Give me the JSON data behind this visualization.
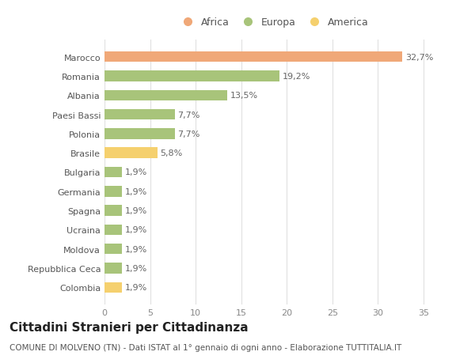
{
  "categories": [
    "Colombia",
    "Repubblica Ceca",
    "Moldova",
    "Ucraina",
    "Spagna",
    "Germania",
    "Bulgaria",
    "Brasile",
    "Polonia",
    "Paesi Bassi",
    "Albania",
    "Romania",
    "Marocco"
  ],
  "values": [
    1.9,
    1.9,
    1.9,
    1.9,
    1.9,
    1.9,
    1.9,
    5.8,
    7.7,
    7.7,
    13.5,
    19.2,
    32.7
  ],
  "colors": [
    "#f5d06e",
    "#a8c47a",
    "#a8c47a",
    "#a8c47a",
    "#a8c47a",
    "#a8c47a",
    "#a8c47a",
    "#f5d06e",
    "#a8c47a",
    "#a8c47a",
    "#a8c47a",
    "#a8c47a",
    "#f0a878"
  ],
  "labels": [
    "1,9%",
    "1,9%",
    "1,9%",
    "1,9%",
    "1,9%",
    "1,9%",
    "1,9%",
    "5,8%",
    "7,7%",
    "7,7%",
    "13,5%",
    "19,2%",
    "32,7%"
  ],
  "legend": [
    {
      "label": "Africa",
      "color": "#f0a878"
    },
    {
      "label": "Europa",
      "color": "#a8c47a"
    },
    {
      "label": "America",
      "color": "#f5d06e"
    }
  ],
  "xlim": [
    0,
    37
  ],
  "xticks": [
    0,
    5,
    10,
    15,
    20,
    25,
    30,
    35
  ],
  "title": "Cittadini Stranieri per Cittadinanza",
  "subtitle": "COMUNE DI MOLVENO (TN) - Dati ISTAT al 1° gennaio di ogni anno - Elaborazione TUTTITALIA.IT",
  "background_color": "#ffffff",
  "grid_color": "#e0e0e0",
  "bar_height": 0.55,
  "label_fontsize": 8,
  "ytick_fontsize": 8,
  "xtick_fontsize": 8,
  "title_fontsize": 11,
  "subtitle_fontsize": 7.5,
  "legend_fontsize": 9
}
